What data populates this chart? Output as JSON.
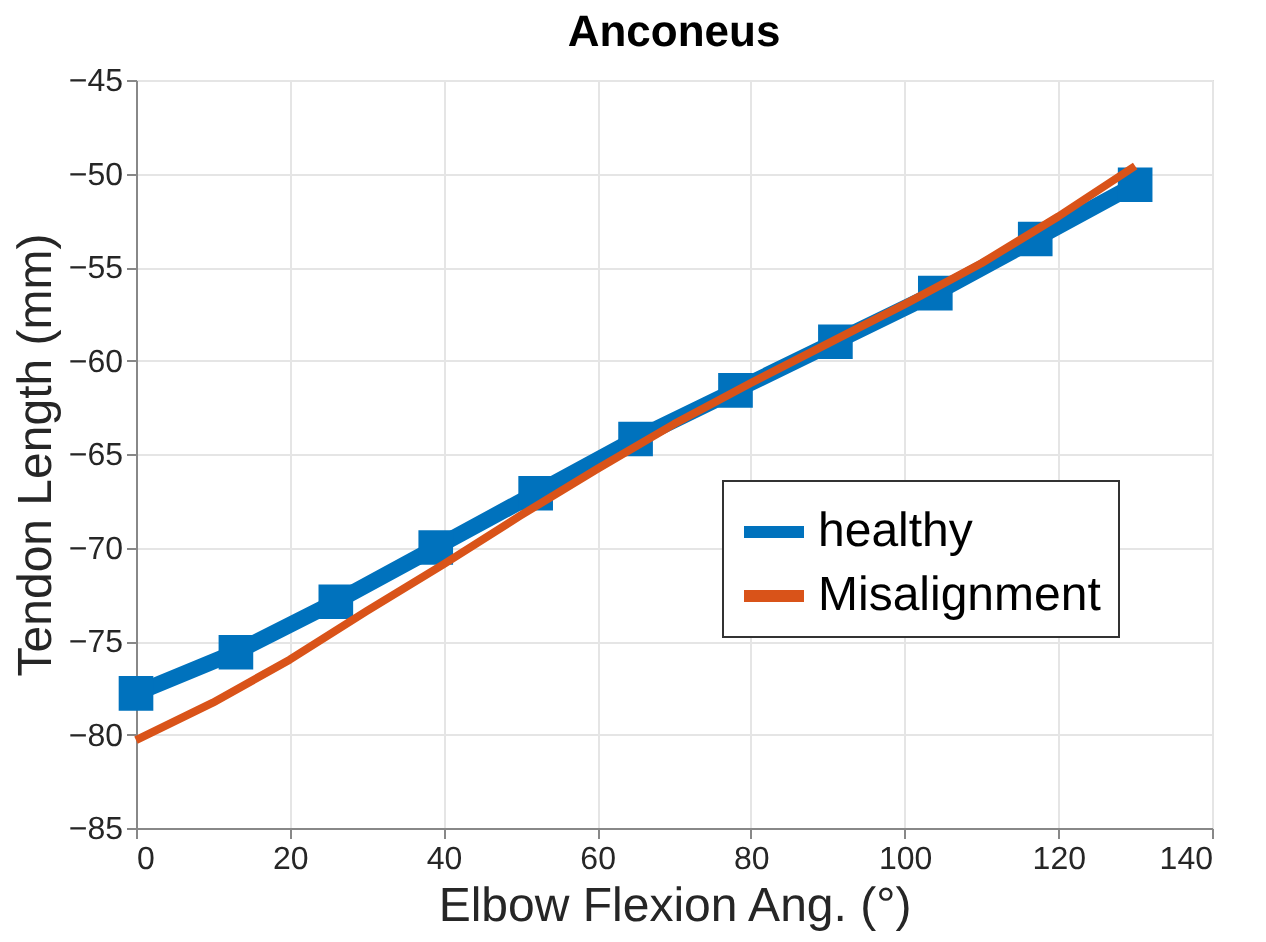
{
  "chart_data": {
    "type": "line",
    "title": "Anconeus",
    "xlabel": "Elbow Flexion Ang. (°)",
    "ylabel": "Tendon Length (mm)",
    "xlim": [
      0,
      140
    ],
    "xticks": [
      0,
      20,
      40,
      60,
      80,
      100,
      120,
      140
    ],
    "ylim": [
      -85,
      -45
    ],
    "yticks": [
      -85,
      -80,
      -75,
      -70,
      -65,
      -60,
      -55,
      -50,
      -45
    ],
    "grid": true,
    "legend": "right",
    "series": [
      {
        "name": "healthy",
        "color": "#0072bd",
        "marker": "square",
        "x": [
          0,
          13,
          26,
          39,
          52,
          65,
          78,
          91,
          104,
          117,
          130
        ],
        "values": [
          -77.8,
          -75.6,
          -72.9,
          -70.0,
          -67.1,
          -64.2,
          -61.6,
          -59.0,
          -56.4,
          -53.5,
          -50.6
        ]
      },
      {
        "name": "Misalignment",
        "color": "#d95319",
        "marker": "none",
        "x": [
          0,
          10,
          20,
          30,
          40,
          50,
          60,
          70,
          80,
          90,
          100,
          110,
          120,
          130
        ],
        "values": [
          -80.3,
          -78.3,
          -76.0,
          -73.4,
          -70.9,
          -68.3,
          -65.8,
          -63.4,
          -61.2,
          -59.1,
          -57.0,
          -54.8,
          -52.3,
          -49.6
        ]
      }
    ]
  }
}
